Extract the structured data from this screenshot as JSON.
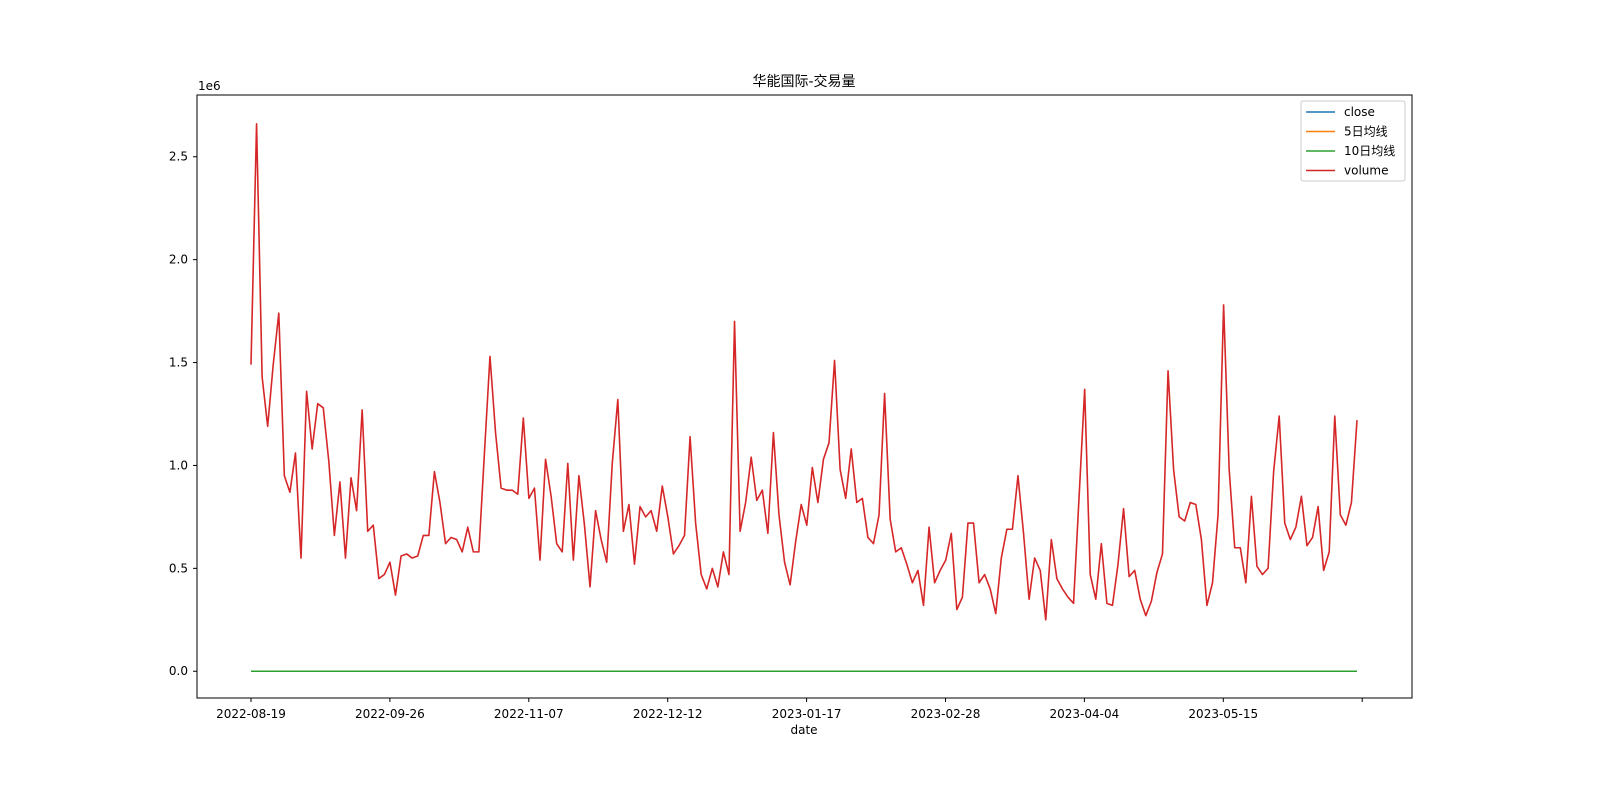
{
  "chart_data": {
    "type": "line",
    "title": "华能国际-交易量",
    "xlabel": "date",
    "ylabel": "",
    "y_offset_label": "1e6",
    "y_scale": 1000000,
    "ylim": [
      -0.13,
      2.8
    ],
    "y_ticks": [
      0.0,
      0.5,
      1.0,
      1.5,
      2.0,
      2.5
    ],
    "y_tick_labels": [
      "0.0",
      "0.5",
      "1.0",
      "1.5",
      "2.0",
      "2.5"
    ],
    "x_ticks": [
      "2022-08-19",
      "2022-09-26",
      "2022-11-07",
      "2022-12-12",
      "2023-01-17",
      "2023-02-28",
      "2023-04-04",
      "2023-05-15",
      ""
    ],
    "legend_position": "upper right",
    "grid": false,
    "colors": {
      "close": "#1f77b4",
      "ma5": "#ff7f0e",
      "ma10": "#2ca02c",
      "volume": "#d62728"
    },
    "legend": [
      "close",
      "5日均线",
      "10日均线",
      "volume"
    ],
    "series": [
      {
        "name": "close",
        "values_const": 4.8e-06
      },
      {
        "name": "5日均线",
        "values_const": 4.8e-06
      },
      {
        "name": "10日均线",
        "values_const": 4.8e-06
      },
      {
        "name": "volume",
        "values": [
          1.49,
          2.66,
          1.43,
          1.19,
          1.49,
          1.74,
          0.95,
          0.87,
          1.06,
          0.55,
          1.36,
          1.08,
          1.3,
          1.28,
          1.02,
          0.66,
          0.92,
          0.55,
          0.94,
          0.78,
          1.27,
          0.68,
          0.71,
          0.45,
          0.47,
          0.53,
          0.37,
          0.56,
          0.57,
          0.55,
          0.56,
          0.66,
          0.66,
          0.97,
          0.82,
          0.62,
          0.65,
          0.64,
          0.58,
          0.7,
          0.58,
          0.58,
          1.06,
          1.53,
          1.16,
          0.89,
          0.88,
          0.88,
          0.86,
          1.23,
          0.84,
          0.89,
          0.54,
          1.03,
          0.85,
          0.62,
          0.58,
          1.01,
          0.54,
          0.95,
          0.71,
          0.41,
          0.78,
          0.64,
          0.53,
          1.01,
          1.32,
          0.68,
          0.81,
          0.52,
          0.8,
          0.75,
          0.78,
          0.68,
          0.9,
          0.75,
          0.57,
          0.61,
          0.66,
          1.14,
          0.72,
          0.47,
          0.4,
          0.5,
          0.41,
          0.58,
          0.47,
          1.7,
          0.68,
          0.82,
          1.04,
          0.83,
          0.88,
          0.67,
          1.16,
          0.76,
          0.53,
          0.42,
          0.63,
          0.81,
          0.71,
          0.99,
          0.82,
          1.03,
          1.11,
          1.51,
          0.98,
          0.84,
          1.08,
          0.82,
          0.84,
          0.65,
          0.62,
          0.76,
          1.35,
          0.74,
          0.58,
          0.6,
          0.52,
          0.43,
          0.49,
          0.32,
          0.7,
          0.43,
          0.49,
          0.54,
          0.67,
          0.3,
          0.36,
          0.72,
          0.72,
          0.43,
          0.47,
          0.4,
          0.28,
          0.55,
          0.69,
          0.69,
          0.95,
          0.67,
          0.35,
          0.55,
          0.49,
          0.25,
          0.64,
          0.45,
          0.4,
          0.36,
          0.33,
          0.85,
          1.37,
          0.47,
          0.35,
          0.62,
          0.33,
          0.32,
          0.52,
          0.79,
          0.46,
          0.49,
          0.35,
          0.27,
          0.34,
          0.48,
          0.57,
          1.46,
          0.98,
          0.75,
          0.73,
          0.82,
          0.81,
          0.64,
          0.32,
          0.43,
          0.76,
          1.78,
          0.98,
          0.6,
          0.6,
          0.43,
          0.85,
          0.51,
          0.47,
          0.5,
          0.97,
          1.24,
          0.72,
          0.64,
          0.7,
          0.85,
          0.61,
          0.65,
          0.8,
          0.49,
          0.58,
          1.24,
          0.76,
          0.71,
          0.82,
          1.22
        ]
      }
    ]
  }
}
